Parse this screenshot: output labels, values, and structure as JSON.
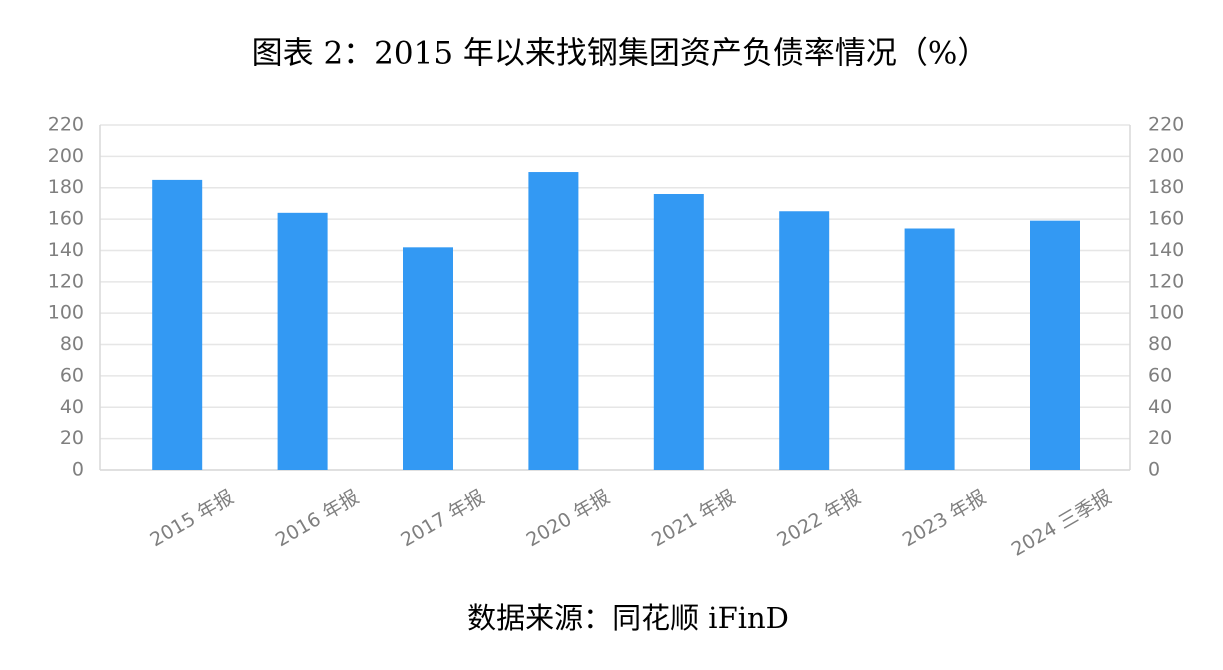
{
  "chart_data": {
    "type": "bar",
    "title": "图表 2：2015 年以来找钢集团资产负债率情况（%）",
    "source": "数据来源：同花顺 iFinD",
    "categories": [
      "2015 年报",
      "2016 年报",
      "2017 年报",
      "2020 年报",
      "2021 年报",
      "2022 年报",
      "2023 年报",
      "2024 三季报"
    ],
    "values": [
      185,
      164,
      142,
      190,
      176,
      165,
      154,
      159
    ],
    "color": "#3399f3",
    "ylim": [
      0,
      220
    ],
    "yticks": [
      0,
      20,
      40,
      60,
      80,
      100,
      120,
      140,
      160,
      180,
      200,
      220
    ],
    "y2lim": [
      0,
      220
    ],
    "y2ticks": [
      0,
      20,
      40,
      60,
      80,
      100,
      120,
      140,
      160,
      180,
      200,
      220
    ],
    "grid": true
  }
}
